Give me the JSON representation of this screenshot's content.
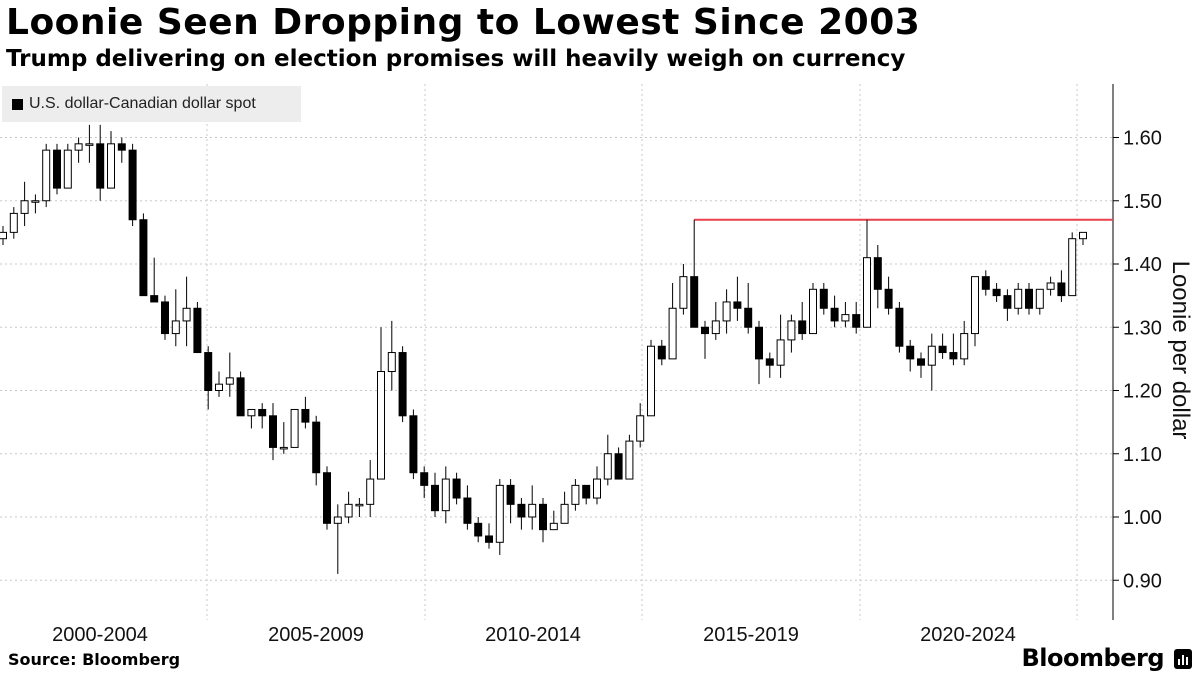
{
  "title": "Loonie Seen Dropping to Lowest Since 2003",
  "subtitle": "Trump delivering on election promises will heavily weigh on currency",
  "source": "Source: Bloomberg",
  "brand": "Bloomberg",
  "chart_data": {
    "type": "candlestick",
    "series_name": "U.S. dollar-Canadian dollar spot",
    "ylabel": "Loonie per dollar",
    "ylim": [
      0.84,
      1.69
    ],
    "yticks": [
      "0.90",
      "1.00",
      "1.10",
      "1.20",
      "1.30",
      "1.40",
      "1.50",
      "1.60"
    ],
    "period_labels": [
      "2000-2004",
      "2005-2009",
      "2010-2014",
      "2015-2019",
      "2020-2024"
    ],
    "resistance_level": 1.47,
    "colors": {
      "up": "#ffffff",
      "down": "#000000",
      "resistance": "#e8414d",
      "grid": "#c8c8c8"
    },
    "candles": [
      [
        1.44,
        1.45,
        1.46,
        1.43
      ],
      [
        1.45,
        1.48,
        1.49,
        1.44
      ],
      [
        1.48,
        1.5,
        1.53,
        1.46
      ],
      [
        1.5,
        1.5,
        1.51,
        1.48
      ],
      [
        1.5,
        1.58,
        1.59,
        1.49
      ],
      [
        1.58,
        1.52,
        1.59,
        1.51
      ],
      [
        1.52,
        1.58,
        1.59,
        1.52
      ],
      [
        1.58,
        1.59,
        1.6,
        1.56
      ],
      [
        1.59,
        1.59,
        1.62,
        1.56
      ],
      [
        1.59,
        1.52,
        1.62,
        1.5
      ],
      [
        1.52,
        1.59,
        1.61,
        1.52
      ],
      [
        1.59,
        1.58,
        1.6,
        1.56
      ],
      [
        1.58,
        1.47,
        1.59,
        1.46
      ],
      [
        1.47,
        1.35,
        1.48,
        1.35
      ],
      [
        1.35,
        1.34,
        1.41,
        1.34
      ],
      [
        1.34,
        1.29,
        1.35,
        1.28
      ],
      [
        1.29,
        1.31,
        1.36,
        1.27
      ],
      [
        1.31,
        1.33,
        1.38,
        1.27
      ],
      [
        1.33,
        1.26,
        1.34,
        1.26
      ],
      [
        1.26,
        1.2,
        1.27,
        1.17
      ],
      [
        1.2,
        1.21,
        1.23,
        1.19
      ],
      [
        1.21,
        1.22,
        1.26,
        1.19
      ],
      [
        1.22,
        1.16,
        1.23,
        1.16
      ],
      [
        1.16,
        1.17,
        1.17,
        1.14
      ],
      [
        1.17,
        1.16,
        1.18,
        1.14
      ],
      [
        1.16,
        1.11,
        1.18,
        1.09
      ],
      [
        1.11,
        1.11,
        1.15,
        1.1
      ],
      [
        1.11,
        1.17,
        1.17,
        1.11
      ],
      [
        1.17,
        1.15,
        1.19,
        1.14
      ],
      [
        1.15,
        1.07,
        1.16,
        1.05
      ],
      [
        1.07,
        0.99,
        1.08,
        0.98
      ],
      [
        0.99,
        1.0,
        1.02,
        0.91
      ],
      [
        1.0,
        1.02,
        1.04,
        0.99
      ],
      [
        1.02,
        1.02,
        1.03,
        1.0
      ],
      [
        1.02,
        1.06,
        1.09,
        1.0
      ],
      [
        1.06,
        1.23,
        1.3,
        1.06
      ],
      [
        1.23,
        1.26,
        1.31,
        1.2
      ],
      [
        1.26,
        1.16,
        1.27,
        1.15
      ],
      [
        1.16,
        1.07,
        1.17,
        1.06
      ],
      [
        1.07,
        1.05,
        1.08,
        1.03
      ],
      [
        1.05,
        1.01,
        1.07,
        1.0
      ],
      [
        1.01,
        1.06,
        1.08,
        0.99
      ],
      [
        1.06,
        1.03,
        1.07,
        1.02
      ],
      [
        1.03,
        0.99,
        1.05,
        0.98
      ],
      [
        0.99,
        0.97,
        1.0,
        0.96
      ],
      [
        0.97,
        0.96,
        0.99,
        0.95
      ],
      [
        0.96,
        1.05,
        1.06,
        0.94
      ],
      [
        1.05,
        1.02,
        1.06,
        0.99
      ],
      [
        1.02,
        1.0,
        1.03,
        0.98
      ],
      [
        1.0,
        1.02,
        1.05,
        0.98
      ],
      [
        1.02,
        0.98,
        1.03,
        0.96
      ],
      [
        0.98,
        0.99,
        1.01,
        0.98
      ],
      [
        0.99,
        1.02,
        1.04,
        0.99
      ],
      [
        1.02,
        1.05,
        1.06,
        1.01
      ],
      [
        1.05,
        1.03,
        1.05,
        1.02
      ],
      [
        1.03,
        1.06,
        1.08,
        1.02
      ],
      [
        1.06,
        1.1,
        1.13,
        1.05
      ],
      [
        1.1,
        1.06,
        1.11,
        1.06
      ],
      [
        1.06,
        1.12,
        1.13,
        1.06
      ],
      [
        1.12,
        1.16,
        1.18,
        1.11
      ],
      [
        1.16,
        1.27,
        1.28,
        1.16
      ],
      [
        1.27,
        1.25,
        1.28,
        1.24
      ],
      [
        1.25,
        1.33,
        1.37,
        1.25
      ],
      [
        1.33,
        1.38,
        1.4,
        1.32
      ],
      [
        1.38,
        1.3,
        1.47,
        1.3
      ],
      [
        1.3,
        1.29,
        1.31,
        1.25
      ],
      [
        1.29,
        1.31,
        1.34,
        1.28
      ],
      [
        1.31,
        1.34,
        1.36,
        1.29
      ],
      [
        1.34,
        1.33,
        1.38,
        1.31
      ],
      [
        1.33,
        1.3,
        1.37,
        1.29
      ],
      [
        1.3,
        1.25,
        1.31,
        1.21
      ],
      [
        1.25,
        1.24,
        1.26,
        1.22
      ],
      [
        1.24,
        1.28,
        1.32,
        1.22
      ],
      [
        1.28,
        1.31,
        1.32,
        1.26
      ],
      [
        1.31,
        1.29,
        1.34,
        1.28
      ],
      [
        1.29,
        1.36,
        1.37,
        1.29
      ],
      [
        1.36,
        1.33,
        1.37,
        1.32
      ],
      [
        1.33,
        1.31,
        1.35,
        1.3
      ],
      [
        1.31,
        1.32,
        1.34,
        1.3
      ],
      [
        1.32,
        1.3,
        1.34,
        1.29
      ],
      [
        1.3,
        1.41,
        1.47,
        1.3
      ],
      [
        1.41,
        1.36,
        1.43,
        1.33
      ],
      [
        1.36,
        1.33,
        1.38,
        1.32
      ],
      [
        1.33,
        1.27,
        1.34,
        1.26
      ],
      [
        1.27,
        1.25,
        1.28,
        1.23
      ],
      [
        1.25,
        1.24,
        1.26,
        1.22
      ],
      [
        1.24,
        1.27,
        1.29,
        1.2
      ],
      [
        1.27,
        1.26,
        1.29,
        1.25
      ],
      [
        1.26,
        1.25,
        1.29,
        1.24
      ],
      [
        1.25,
        1.29,
        1.31,
        1.24
      ],
      [
        1.29,
        1.38,
        1.38,
        1.27
      ],
      [
        1.38,
        1.36,
        1.39,
        1.35
      ],
      [
        1.36,
        1.35,
        1.37,
        1.34
      ],
      [
        1.35,
        1.33,
        1.36,
        1.31
      ],
      [
        1.33,
        1.36,
        1.37,
        1.32
      ],
      [
        1.36,
        1.33,
        1.37,
        1.32
      ],
      [
        1.33,
        1.36,
        1.36,
        1.32
      ],
      [
        1.36,
        1.37,
        1.38,
        1.35
      ],
      [
        1.37,
        1.35,
        1.39,
        1.34
      ],
      [
        1.35,
        1.44,
        1.45,
        1.35
      ],
      [
        1.44,
        1.45,
        1.45,
        1.43
      ]
    ]
  }
}
